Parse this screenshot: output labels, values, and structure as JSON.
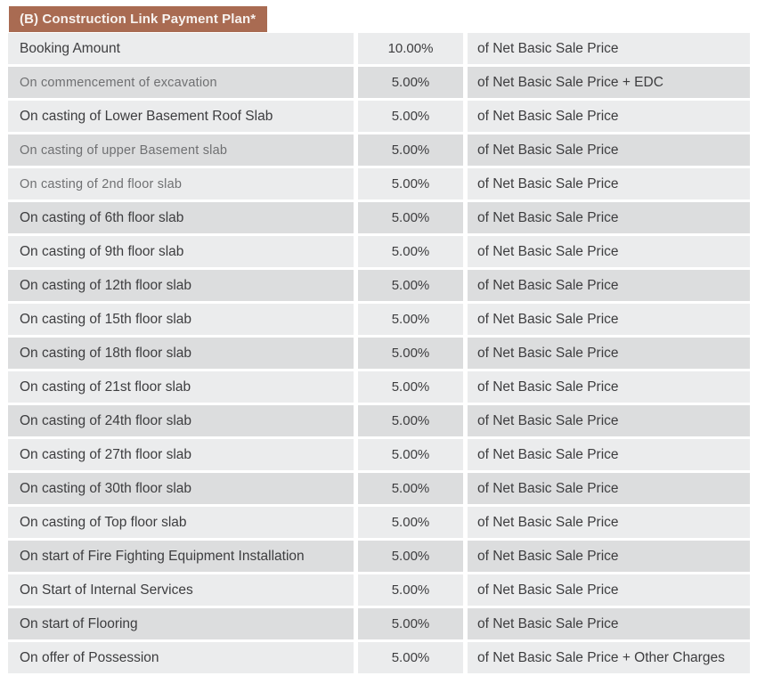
{
  "page": {
    "background": "#ffffff"
  },
  "header": {
    "title": "(B) Construction Link Payment Plan*",
    "background": "#a96b52",
    "text_color": "#f7f2ef"
  },
  "table": {
    "row_colors": {
      "light": "#ebeced",
      "dark": "#dcddde"
    },
    "text_colors": {
      "normal": "#3d3d3f",
      "muted": "#6f7072"
    },
    "columns": [
      "milestone",
      "percentage",
      "basis"
    ],
    "rows": [
      {
        "milestone": "Booking Amount",
        "percentage": "10.00%",
        "basis": "of Net Basic Sale Price",
        "shade": "light",
        "muted": false
      },
      {
        "milestone": "On commencement of excavation",
        "percentage": "5.00%",
        "basis": "of Net Basic Sale Price + EDC",
        "shade": "dark",
        "muted": true
      },
      {
        "milestone": "On casting of Lower Basement Roof Slab",
        "percentage": "5.00%",
        "basis": "of Net Basic Sale Price",
        "shade": "light",
        "muted": false
      },
      {
        "milestone": "On casting of upper Basement slab",
        "percentage": "5.00%",
        "basis": "of Net Basic Sale Price",
        "shade": "dark",
        "muted": true
      },
      {
        "milestone": "On casting of 2nd floor slab",
        "percentage": "5.00%",
        "basis": "of Net Basic Sale Price",
        "shade": "light",
        "muted": true
      },
      {
        "milestone": "On casting of 6th floor slab",
        "percentage": "5.00%",
        "basis": "of Net Basic Sale Price",
        "shade": "dark",
        "muted": false
      },
      {
        "milestone": "On casting of 9th floor slab",
        "percentage": "5.00%",
        "basis": "of Net Basic Sale Price",
        "shade": "light",
        "muted": false
      },
      {
        "milestone": "On casting of 12th floor slab",
        "percentage": "5.00%",
        "basis": "of Net Basic Sale Price",
        "shade": "dark",
        "muted": false
      },
      {
        "milestone": "On casting of 15th floor slab",
        "percentage": "5.00%",
        "basis": "of Net Basic Sale Price",
        "shade": "light",
        "muted": false
      },
      {
        "milestone": "On casting of 18th floor slab",
        "percentage": "5.00%",
        "basis": "of Net Basic Sale Price",
        "shade": "dark",
        "muted": false
      },
      {
        "milestone": "On casting of 21st floor slab",
        "percentage": "5.00%",
        "basis": "of Net Basic Sale Price",
        "shade": "light",
        "muted": false
      },
      {
        "milestone": "On casting of 24th floor slab",
        "percentage": "5.00%",
        "basis": "of Net Basic Sale Price",
        "shade": "dark",
        "muted": false
      },
      {
        "milestone": "On casting of 27th floor slab",
        "percentage": "5.00%",
        "basis": "of Net Basic Sale Price",
        "shade": "light",
        "muted": false
      },
      {
        "milestone": "On casting of 30th floor slab",
        "percentage": "5.00%",
        "basis": "of Net Basic Sale Price",
        "shade": "dark",
        "muted": false
      },
      {
        "milestone": "On casting of Top floor slab",
        "percentage": "5.00%",
        "basis": "of Net Basic Sale Price",
        "shade": "light",
        "muted": false
      },
      {
        "milestone": "On start of Fire Fighting Equipment Installation",
        "percentage": "5.00%",
        "basis": "of Net Basic Sale Price",
        "shade": "dark",
        "muted": false
      },
      {
        "milestone": "On Start of Internal Services",
        "percentage": "5.00%",
        "basis": "of Net Basic Sale Price",
        "shade": "light",
        "muted": false
      },
      {
        "milestone": "On start of Flooring",
        "percentage": "5.00%",
        "basis": "of Net Basic Sale Price",
        "shade": "dark",
        "muted": false
      },
      {
        "milestone": "On offer of Possession",
        "percentage": "5.00%",
        "basis": "of Net Basic Sale Price  + Other Charges",
        "shade": "light",
        "muted": false
      }
    ]
  }
}
